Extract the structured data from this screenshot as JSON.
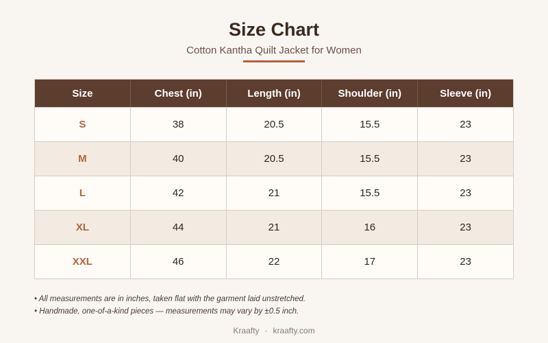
{
  "header": {
    "title": "Size Chart",
    "subtitle": "Cotton Kantha Quilt Jacket for Women"
  },
  "table": {
    "columns": [
      "Size",
      "Chest (in)",
      "Length (in)",
      "Shoulder (in)",
      "Sleeve (in)"
    ],
    "rows": [
      [
        "S",
        38,
        20.5,
        15.5,
        23
      ],
      [
        "M",
        40,
        20.5,
        15.5,
        23
      ],
      [
        "L",
        42,
        21,
        15.5,
        23
      ],
      [
        "XL",
        44,
        21,
        16,
        23
      ],
      [
        "XXL",
        46,
        22,
        17,
        23
      ]
    ]
  },
  "notes": [
    "• All measurements are in inches, taken flat with the garment laid unstretched.",
    "• Handmade, one-of-a-kind pieces — measurements may vary by ±0.5 inch."
  ],
  "footer": {
    "brand": "Kraafty",
    "separator": "·",
    "url": "kraafty.com"
  }
}
